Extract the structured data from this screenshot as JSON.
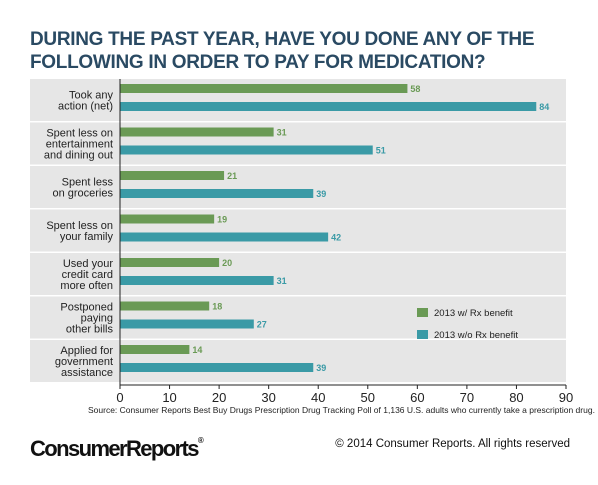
{
  "title": "DURING THE PAST YEAR, HAVE YOU DONE ANY OF THE FOLLOWING IN ORDER TO PAY FOR MEDICATION?",
  "source": "Source: Consumer Reports Best Buy Drugs Prescription Drug Tracking Poll of 1,136 U.S. adults who currently take a prescription drug.",
  "logo_text": "ConsumerReports",
  "copyright": "© 2014 Consumer Reports. All rights reserved",
  "colors": {
    "with_rx": "#6a9a55",
    "without_rx": "#3a9aa6",
    "title": "#2a4a63",
    "band": "#e6e6e6"
  },
  "chart_data": {
    "type": "bar",
    "orientation": "horizontal",
    "categories": [
      [
        "Took any",
        "action (net)"
      ],
      [
        "Spent less on",
        "entertainment",
        "and dining out"
      ],
      [
        "Spent less",
        "on groceries"
      ],
      [
        "Spent less on",
        "your family"
      ],
      [
        "Used your",
        "credit card",
        "more often"
      ],
      [
        "Postponed",
        "paying",
        "other bills"
      ],
      [
        "Applied for",
        "government",
        "assistance"
      ]
    ],
    "series": [
      {
        "name": "2013 w/ Rx benefit",
        "values": [
          58,
          31,
          21,
          19,
          20,
          18,
          14
        ]
      },
      {
        "name": "2013 w/o Rx benefit",
        "values": [
          84,
          51,
          39,
          42,
          31,
          27,
          39
        ]
      }
    ],
    "xlim": [
      0,
      90
    ],
    "xticks": [
      0,
      10,
      20,
      30,
      40,
      50,
      60,
      70,
      80,
      90
    ],
    "legend_position": "right",
    "grid": false
  }
}
